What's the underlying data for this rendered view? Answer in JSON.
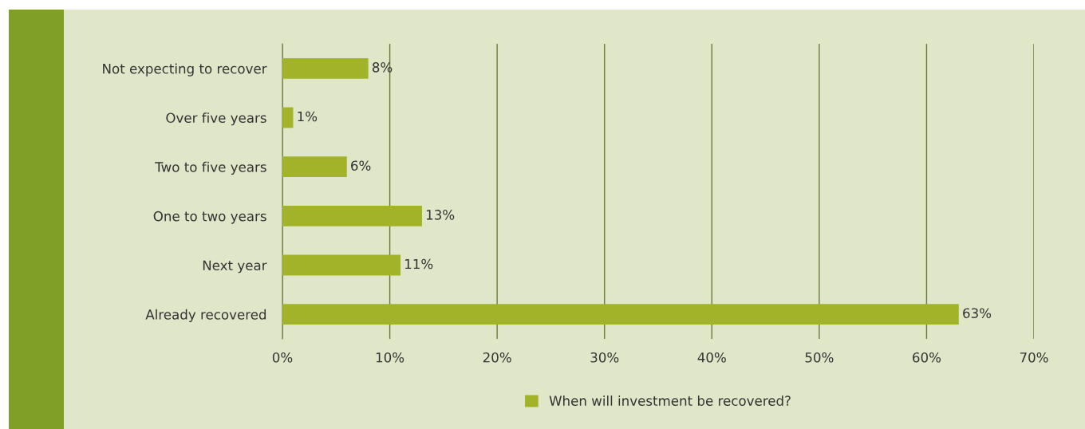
{
  "chart_data": {
    "type": "bar",
    "orientation": "horizontal",
    "categories": [
      "Not expecting to recover",
      "Over five years",
      "Two to five years",
      "One to two years",
      "Next year",
      "Already recovered"
    ],
    "series": [
      {
        "name": "When will investment be recovered?",
        "color": "#a2b32a",
        "values": [
          8,
          1,
          6,
          13,
          11,
          63
        ],
        "value_labels": [
          "8%",
          "1%",
          "6%",
          "13%",
          "11%",
          "63%"
        ]
      }
    ],
    "xlim": [
      0,
      70
    ],
    "xticks": [
      {
        "value": 0,
        "label": "0%"
      },
      {
        "value": 10,
        "label": "10%"
      },
      {
        "value": 20,
        "label": "20%"
      },
      {
        "value": 30,
        "label": "30%"
      },
      {
        "value": 40,
        "label": "40%"
      },
      {
        "value": 50,
        "label": "50%"
      },
      {
        "value": 60,
        "label": "60%"
      },
      {
        "value": 70,
        "label": "70%"
      }
    ],
    "grid": "x",
    "legend": "bottom"
  }
}
